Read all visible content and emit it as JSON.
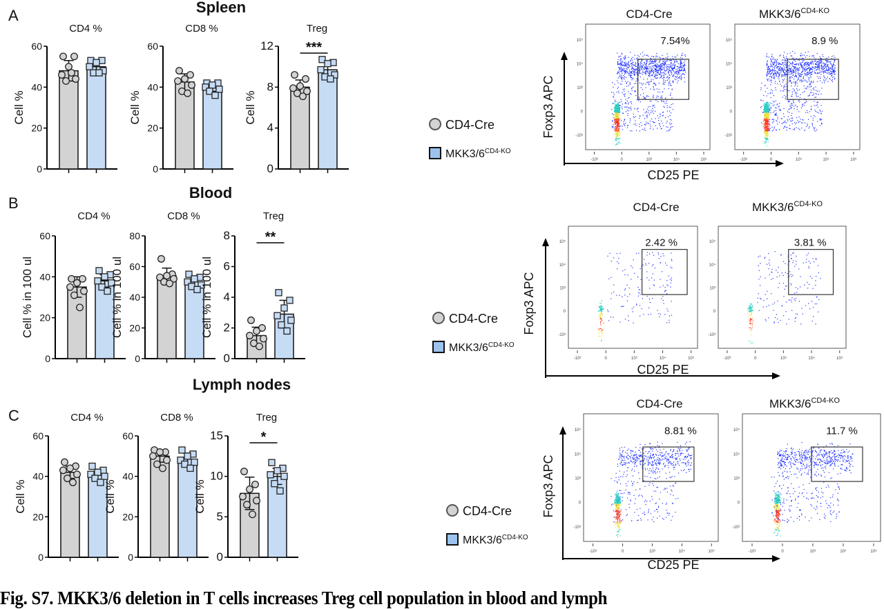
{
  "figure": {
    "caption": "Fig. S7. MKK3/6 deletion in T cells increases Treg cell population in blood and lymph",
    "legend": {
      "control_label": "CD4-Cre",
      "ko_label": "MKK3/6",
      "ko_superscript": "CD4-KO",
      "control_color": "#d3d3d3",
      "ko_color": "#c6dcf5",
      "ko_marker_color": "#9cc3ee"
    }
  },
  "rows": [
    {
      "panel_letter": "A",
      "tissue": "Spleen"
    },
    {
      "panel_letter": "B",
      "tissue": "Blood"
    },
    {
      "panel_letter": "C",
      "tissue": "Lymph nodes"
    }
  ],
  "chart_data": [
    {
      "type": "bar",
      "panel": "A",
      "title": "CD4 %",
      "ylabel": "Cell %",
      "ylim": [
        0,
        60
      ],
      "yticks": [
        "0",
        "20",
        "40",
        "60"
      ],
      "categories": [
        "CD4-Cre",
        "MKK3/6 CD4-KO"
      ],
      "series": [
        {
          "name": "CD4-Cre",
          "mean": 48,
          "error": 5,
          "points": [
            55,
            55,
            50,
            46,
            44,
            43,
            47
          ]
        },
        {
          "name": "MKK3/6 CD4-KO",
          "mean": 50,
          "error": 3,
          "points": [
            53,
            53,
            52,
            50,
            48,
            47,
            47
          ]
        }
      ],
      "significance": ""
    },
    {
      "type": "bar",
      "panel": "A",
      "title": "CD8 %",
      "ylabel": "Cell %",
      "ylim": [
        0,
        60
      ],
      "yticks": [
        "0",
        "20",
        "40",
        "60"
      ],
      "categories": [
        "CD4-Cre",
        "MKK3/6 CD4-KO"
      ],
      "series": [
        {
          "name": "CD4-Cre",
          "mean": 42.5,
          "error": 4,
          "points": [
            48,
            46,
            44,
            43,
            41,
            38,
            37
          ]
        },
        {
          "name": "MKK3/6 CD4-KO",
          "mean": 40,
          "error": 2,
          "points": [
            42,
            42,
            41,
            40,
            39,
            38,
            36
          ]
        }
      ],
      "significance": ""
    },
    {
      "type": "bar",
      "panel": "A",
      "title": "Treg",
      "ylabel": "Cell %",
      "ylim": [
        0,
        12
      ],
      "yticks": [
        "0",
        "4",
        "8",
        "12"
      ],
      "categories": [
        "CD4-Cre",
        "MKK3/6 CD4-KO"
      ],
      "series": [
        {
          "name": "CD4-Cre",
          "mean": 8.0,
          "error": 0.7,
          "points": [
            9.2,
            8.8,
            8.1,
            7.9,
            7.6,
            7.4,
            7.1
          ]
        },
        {
          "name": "MKK3/6 CD4-KO",
          "mean": 9.7,
          "error": 0.7,
          "points": [
            10.7,
            10.4,
            10.3,
            9.7,
            9.2,
            9.0,
            8.8
          ]
        }
      ],
      "significance": "***"
    },
    {
      "type": "bar",
      "panel": "B",
      "title": "CD4 %",
      "ylabel": "Cell % in 100 ul",
      "ylim": [
        0,
        60
      ],
      "yticks": [
        "0",
        "20",
        "40",
        "60"
      ],
      "categories": [
        "CD4-Cre",
        "MKK3/6 CD4-KO"
      ],
      "series": [
        {
          "name": "CD4-Cre",
          "mean": 35,
          "error": 5,
          "points": [
            39,
            39,
            37,
            35,
            33,
            31,
            25
          ]
        },
        {
          "name": "MKK3/6 CD4-KO",
          "mean": 38,
          "error": 3,
          "points": [
            43,
            41,
            40,
            38,
            37,
            35,
            33
          ]
        }
      ],
      "significance": ""
    },
    {
      "type": "bar",
      "panel": "B",
      "title": "CD8 %",
      "ylabel": "Cell % in 100 ul",
      "ylim": [
        0,
        80
      ],
      "yticks": [
        "0",
        "20",
        "40",
        "60",
        "80"
      ],
      "categories": [
        "CD4-Cre",
        "MKK3/6 CD4-KO"
      ],
      "series": [
        {
          "name": "CD4-Cre",
          "mean": 54,
          "error": 5,
          "points": [
            65,
            55,
            54,
            53,
            52,
            50,
            49
          ]
        },
        {
          "name": "MKK3/6 CD4-KO",
          "mean": 50,
          "error": 3,
          "points": [
            55,
            53,
            52,
            50,
            48,
            47,
            45
          ]
        }
      ],
      "significance": ""
    },
    {
      "type": "bar",
      "panel": "B",
      "title": "Treg",
      "ylabel": "Cell % in 100 ul",
      "ylim": [
        0,
        8
      ],
      "yticks": [
        "0",
        "2",
        "4",
        "6",
        "8"
      ],
      "categories": [
        "CD4-Cre",
        "MKK3/6 CD4-KO"
      ],
      "series": [
        {
          "name": "CD4-Cre",
          "mean": 1.5,
          "error": 0.55,
          "points": [
            2.5,
            2.0,
            1.8,
            1.5,
            1.3,
            1.0,
            0.8
          ]
        },
        {
          "name": "MKK3/6 CD4-KO",
          "mean": 2.9,
          "error": 0.9,
          "points": [
            4.3,
            3.8,
            3.3,
            2.8,
            2.5,
            2.2,
            1.8
          ]
        }
      ],
      "significance": "**"
    },
    {
      "type": "bar",
      "panel": "C",
      "title": "CD4 %",
      "ylabel": "Cell %",
      "ylim": [
        0,
        60
      ],
      "yticks": [
        "0",
        "20",
        "40",
        "60"
      ],
      "categories": [
        "CD4-Cre",
        "MKK3/6 CD4-KO"
      ],
      "series": [
        {
          "name": "CD4-Cre",
          "mean": 42,
          "error": 3,
          "points": [
            47,
            45,
            44,
            43,
            41,
            39,
            37
          ]
        },
        {
          "name": "MKK3/6 CD4-KO",
          "mean": 41,
          "error": 2.5,
          "points": [
            45,
            43,
            42,
            41,
            40,
            39,
            37
          ]
        }
      ],
      "significance": ""
    },
    {
      "type": "bar",
      "panel": "C",
      "title": "CD8 %",
      "ylabel": "Cell %",
      "ylim": [
        0,
        60
      ],
      "yticks": [
        "0",
        "20",
        "40",
        "60"
      ],
      "categories": [
        "CD4-Cre",
        "MKK3/6 CD4-KO"
      ],
      "series": [
        {
          "name": "CD4-Cre",
          "mean": 50,
          "error": 3,
          "points": [
            53,
            52,
            52,
            50,
            48,
            46,
            44
          ]
        },
        {
          "name": "MKK3/6 CD4-KO",
          "mean": 48.5,
          "error": 3,
          "points": [
            53,
            51,
            50,
            48,
            47,
            46,
            44
          ]
        }
      ],
      "significance": ""
    },
    {
      "type": "bar",
      "panel": "C",
      "title": "Treg",
      "ylabel": "Cell %",
      "ylim": [
        0,
        15
      ],
      "yticks": [
        "0",
        "5",
        "10",
        "15"
      ],
      "categories": [
        "CD4-Cre",
        "MKK3/6 CD4-KO"
      ],
      "series": [
        {
          "name": "CD4-Cre",
          "mean": 7.9,
          "error": 2,
          "points": [
            10.6,
            9.0,
            8.4,
            7.5,
            7.0,
            6.5,
            5.3
          ]
        },
        {
          "name": "MKK3/6 CD4-KO",
          "mean": 10,
          "error": 1,
          "points": [
            11.7,
            11.0,
            10.7,
            10.2,
            10.0,
            9.1,
            8.2
          ]
        }
      ],
      "significance": "*"
    }
  ],
  "flow": {
    "xlabel": "CD25 PE",
    "ylabel": "Foxp3 APC",
    "y_ticks": [
      "10⁵",
      "10⁴",
      "10³",
      "0",
      "-10³"
    ],
    "x_ticks": [
      "-10³",
      "0",
      "10³",
      "10⁴",
      "10⁵"
    ],
    "plots": [
      {
        "panel": "A",
        "group": "CD4-Cre",
        "gate_percent": "7.54%"
      },
      {
        "panel": "A",
        "group": "MKK3/6 CD4-KO",
        "gate_percent": "8.9 %"
      },
      {
        "panel": "B",
        "group": "CD4-Cre",
        "gate_percent": "2.42 %"
      },
      {
        "panel": "B",
        "group": "MKK3/6 CD4-KO",
        "gate_percent": "3.81 %"
      },
      {
        "panel": "C",
        "group": "CD4-Cre",
        "gate_percent": "8.81 %"
      },
      {
        "panel": "C",
        "group": "MKK3/6 CD4-KO",
        "gate_percent": "11.7 %"
      }
    ]
  }
}
